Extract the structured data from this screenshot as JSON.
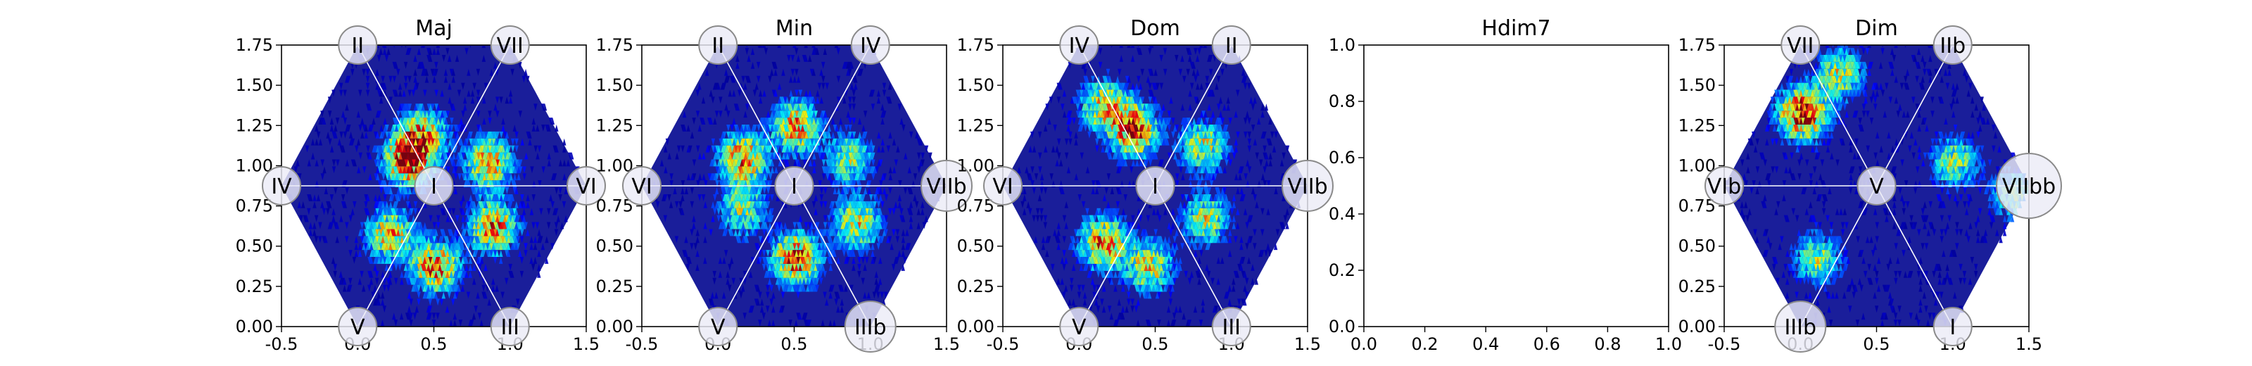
{
  "chart_data": [
    {
      "type": "heatmap",
      "title": "Maj",
      "xlim": [
        -0.5,
        1.5
      ],
      "ylim": [
        0.0,
        1.75
      ],
      "xticks": [
        "-0.5",
        "0.0",
        "0.5",
        "1.0",
        "1.5"
      ],
      "yticks": [
        "0.00",
        "0.25",
        "0.50",
        "0.75",
        "1.00",
        "1.25",
        "1.50",
        "1.75"
      ],
      "nodes": [
        {
          "label": "II",
          "x": 0.0,
          "y": 1.75
        },
        {
          "label": "VII",
          "x": 1.0,
          "y": 1.75
        },
        {
          "label": "IV",
          "x": -0.5,
          "y": 0.875
        },
        {
          "label": "I",
          "x": 0.5,
          "y": 0.875
        },
        {
          "label": "VI",
          "x": 1.5,
          "y": 0.875
        },
        {
          "label": "V",
          "x": 0.0,
          "y": 0.0
        },
        {
          "label": "III",
          "x": 1.0,
          "y": 0.0
        }
      ],
      "hotspots": [
        {
          "x": 0.32,
          "y": 1.02,
          "intensity": 0.95
        },
        {
          "x": 0.42,
          "y": 1.18,
          "intensity": 0.6
        },
        {
          "x": 0.85,
          "y": 1.0,
          "intensity": 0.7
        },
        {
          "x": 0.2,
          "y": 0.55,
          "intensity": 0.65
        },
        {
          "x": 0.5,
          "y": 0.35,
          "intensity": 0.8
        },
        {
          "x": 0.88,
          "y": 0.6,
          "intensity": 0.75
        }
      ]
    },
    {
      "type": "heatmap",
      "title": "Min",
      "xlim": [
        -0.5,
        1.5
      ],
      "ylim": [
        0.0,
        1.75
      ],
      "xticks": [
        "-0.5",
        "0.0",
        "0.5",
        "1.0",
        "1.5"
      ],
      "yticks": [
        "0.00",
        "0.25",
        "0.50",
        "0.75",
        "1.00",
        "1.25",
        "1.50",
        "1.75"
      ],
      "nodes": [
        {
          "label": "II",
          "x": 0.0,
          "y": 1.75
        },
        {
          "label": "IV",
          "x": 1.0,
          "y": 1.75
        },
        {
          "label": "VI",
          "x": -0.5,
          "y": 0.875
        },
        {
          "label": "I",
          "x": 0.5,
          "y": 0.875
        },
        {
          "label": "VIIb",
          "x": 1.5,
          "y": 0.875
        },
        {
          "label": "V",
          "x": 0.0,
          "y": 0.0
        },
        {
          "label": "IIIb",
          "x": 1.0,
          "y": 0.0
        }
      ],
      "hotspots": [
        {
          "x": 0.15,
          "y": 1.02,
          "intensity": 0.75
        },
        {
          "x": 0.5,
          "y": 1.22,
          "intensity": 0.7
        },
        {
          "x": 0.85,
          "y": 1.02,
          "intensity": 0.5
        },
        {
          "x": 0.15,
          "y": 0.7,
          "intensity": 0.5
        },
        {
          "x": 0.5,
          "y": 0.4,
          "intensity": 0.85
        },
        {
          "x": 0.9,
          "y": 0.62,
          "intensity": 0.6
        }
      ]
    },
    {
      "type": "heatmap",
      "title": "Dom",
      "xlim": [
        -0.5,
        1.5
      ],
      "ylim": [
        0.0,
        1.75
      ],
      "xticks": [
        "-0.5",
        "0.0",
        "0.5",
        "1.0",
        "1.5"
      ],
      "yticks": [
        "0.00",
        "0.25",
        "0.50",
        "0.75",
        "1.00",
        "1.25",
        "1.50",
        "1.75"
      ],
      "nodes": [
        {
          "label": "IV",
          "x": 0.0,
          "y": 1.75
        },
        {
          "label": "II",
          "x": 1.0,
          "y": 1.75
        },
        {
          "label": "VI",
          "x": -0.5,
          "y": 0.875
        },
        {
          "label": "I",
          "x": 0.5,
          "y": 0.875
        },
        {
          "label": "VIIb",
          "x": 1.5,
          "y": 0.875
        },
        {
          "label": "V",
          "x": 0.0,
          "y": 0.0
        },
        {
          "label": "III",
          "x": 1.0,
          "y": 0.0
        }
      ],
      "hotspots": [
        {
          "x": 0.35,
          "y": 1.2,
          "intensity": 0.85
        },
        {
          "x": 0.15,
          "y": 1.35,
          "intensity": 0.6
        },
        {
          "x": 0.8,
          "y": 1.1,
          "intensity": 0.55
        },
        {
          "x": 0.15,
          "y": 0.5,
          "intensity": 0.75
        },
        {
          "x": 0.45,
          "y": 0.35,
          "intensity": 0.6
        },
        {
          "x": 0.82,
          "y": 0.65,
          "intensity": 0.55
        }
      ]
    },
    {
      "type": "heatmap",
      "title": "Hdim7",
      "xlim": [
        0.0,
        1.0
      ],
      "ylim": [
        0.0,
        1.0
      ],
      "xticks": [
        "0.0",
        "0.2",
        "0.4",
        "0.6",
        "0.8",
        "1.0"
      ],
      "yticks": [
        "0.0",
        "0.2",
        "0.4",
        "0.6",
        "0.8",
        "1.0"
      ],
      "nodes": [],
      "hotspots": []
    },
    {
      "type": "heatmap",
      "title": "Dim",
      "xlim": [
        -0.5,
        1.5
      ],
      "ylim": [
        0.0,
        1.75
      ],
      "xticks": [
        "-0.5",
        "0.0",
        "0.5",
        "1.0",
        "1.5"
      ],
      "yticks": [
        "0.00",
        "0.25",
        "0.50",
        "0.75",
        "1.00",
        "1.25",
        "1.50",
        "1.75"
      ],
      "nodes": [
        {
          "label": "VII",
          "x": 0.0,
          "y": 1.75
        },
        {
          "label": "IIb",
          "x": 1.0,
          "y": 1.75
        },
        {
          "label": "VIb",
          "x": -0.5,
          "y": 0.875
        },
        {
          "label": "V",
          "x": 0.5,
          "y": 0.875
        },
        {
          "label": "VIIbb",
          "x": 1.5,
          "y": 0.875
        },
        {
          "label": "IIIb",
          "x": 0.0,
          "y": 0.0
        },
        {
          "label": "I",
          "x": 1.0,
          "y": 0.0
        }
      ],
      "hotspots": [
        {
          "x": 0.0,
          "y": 1.3,
          "intensity": 0.95
        },
        {
          "x": 0.25,
          "y": 1.55,
          "intensity": 0.55
        },
        {
          "x": 1.0,
          "y": 1.0,
          "intensity": 0.5
        },
        {
          "x": 0.1,
          "y": 0.4,
          "intensity": 0.5
        },
        {
          "x": 1.4,
          "y": 0.8,
          "intensity": 0.45
        }
      ]
    }
  ]
}
